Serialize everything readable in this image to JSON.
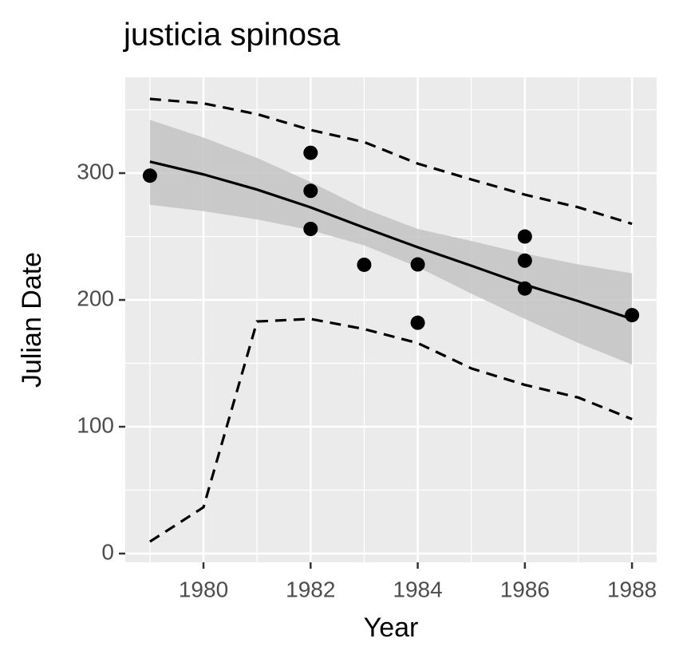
{
  "chart_data": {
    "type": "scatter",
    "title": "justicia spinosa",
    "x_label": "Year",
    "y_label": "Julian Date",
    "xlim": [
      1978.54,
      1988.46
    ],
    "ylim": [
      -6.9,
      375.5
    ],
    "xticks": [
      1980,
      1982,
      1984,
      1986,
      1988
    ],
    "yticks": [
      0,
      100,
      200,
      300
    ],
    "grid": true,
    "background": "#ebebeb",
    "point_color": "#000000",
    "line_color": "#000000",
    "band_color": "#c3c3c3",
    "points": {
      "x": [
        1979,
        1982,
        1982,
        1982,
        1983,
        1984,
        1984,
        1986,
        1986,
        1986,
        1988
      ],
      "y": [
        298,
        316,
        286,
        256,
        227.7,
        228,
        182,
        250,
        231,
        209,
        188
      ]
    },
    "fit": {
      "x": [
        1979,
        1980,
        1981,
        1982,
        1983,
        1984,
        1985,
        1986,
        1987,
        1988
      ],
      "y": [
        309,
        299,
        287,
        273,
        257,
        241.5,
        227,
        212,
        199,
        185
      ],
      "lower": [
        275,
        270,
        263.5,
        255,
        243,
        226,
        205,
        185,
        166,
        149
      ],
      "upper": [
        342,
        328,
        312,
        293,
        272,
        256,
        246.5,
        236.5,
        228,
        221
      ]
    },
    "interval": {
      "x": [
        1979,
        1980,
        1981,
        1982,
        1983,
        1984,
        1985,
        1986,
        1987,
        1988
      ],
      "upper": [
        358.5,
        355,
        346.5,
        334,
        324.5,
        307.5,
        295,
        283,
        273,
        260
      ],
      "lower": [
        9.4,
        36.5,
        183,
        185,
        177,
        166,
        146,
        133,
        123,
        106
      ]
    }
  }
}
